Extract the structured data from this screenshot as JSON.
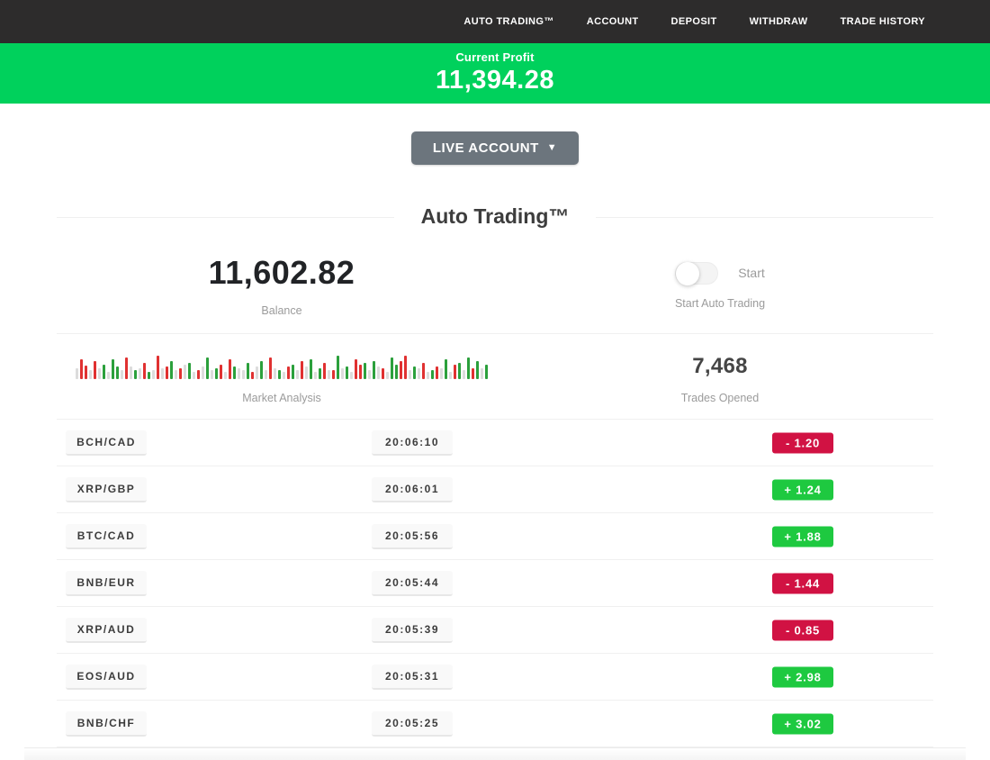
{
  "navbar": {
    "items": [
      "AUTO TRADING™",
      "ACCOUNT",
      "DEPOSIT",
      "WITHDRAW",
      "TRADE HISTORY"
    ]
  },
  "profit_banner": {
    "label": "Current Profit",
    "value": "11,394.28"
  },
  "account_selector": {
    "label": "LIVE ACCOUNT",
    "caret": "▼"
  },
  "section": {
    "title": "Auto Trading™"
  },
  "stats": {
    "balance": {
      "value": "11,602.82",
      "label": "Balance"
    },
    "auto_trading": {
      "state": "off",
      "toggle_label": "Start",
      "label": "Start Auto Trading"
    },
    "trades_opened": {
      "value": "7,468",
      "label": "Trades Opened"
    },
    "market_analysis": {
      "label": "Market Analysis"
    }
  },
  "chart_data": {
    "type": "bar",
    "title": "Market Analysis",
    "note": "decorative candlestick-style ticker, bottom-aligned bars",
    "colors": {
      "r": "#e03131",
      "g": "#2ba03c",
      "x": "#dcdcdc"
    },
    "bars": [
      [
        "x",
        12
      ],
      [
        "r",
        22
      ],
      [
        "r",
        15
      ],
      [
        "x",
        10
      ],
      [
        "r",
        20
      ],
      [
        "x",
        12
      ],
      [
        "g",
        16
      ],
      [
        "x",
        8
      ],
      [
        "g",
        22
      ],
      [
        "g",
        14
      ],
      [
        "x",
        10
      ],
      [
        "r",
        24
      ],
      [
        "x",
        14
      ],
      [
        "g",
        10
      ],
      [
        "x",
        12
      ],
      [
        "r",
        18
      ],
      [
        "g",
        8
      ],
      [
        "x",
        10
      ],
      [
        "r",
        26
      ],
      [
        "x",
        12
      ],
      [
        "r",
        14
      ],
      [
        "g",
        20
      ],
      [
        "x",
        10
      ],
      [
        "r",
        12
      ],
      [
        "x",
        16
      ],
      [
        "g",
        18
      ],
      [
        "x",
        8
      ],
      [
        "r",
        10
      ],
      [
        "x",
        14
      ],
      [
        "g",
        24
      ],
      [
        "x",
        10
      ],
      [
        "g",
        12
      ],
      [
        "r",
        16
      ],
      [
        "x",
        8
      ],
      [
        "r",
        22
      ],
      [
        "g",
        14
      ],
      [
        "x",
        12
      ],
      [
        "x",
        10
      ],
      [
        "g",
        18
      ],
      [
        "r",
        8
      ],
      [
        "x",
        14
      ],
      [
        "g",
        20
      ],
      [
        "x",
        10
      ],
      [
        "r",
        24
      ],
      [
        "x",
        12
      ],
      [
        "g",
        10
      ],
      [
        "x",
        8
      ],
      [
        "r",
        14
      ],
      [
        "g",
        16
      ],
      [
        "x",
        10
      ],
      [
        "r",
        20
      ],
      [
        "x",
        14
      ],
      [
        "g",
        22
      ],
      [
        "x",
        8
      ],
      [
        "g",
        12
      ],
      [
        "r",
        18
      ],
      [
        "x",
        10
      ],
      [
        "r",
        10
      ],
      [
        "g",
        26
      ],
      [
        "x",
        12
      ],
      [
        "g",
        14
      ],
      [
        "x",
        8
      ],
      [
        "r",
        22
      ],
      [
        "r",
        16
      ],
      [
        "g",
        18
      ],
      [
        "x",
        10
      ],
      [
        "g",
        20
      ],
      [
        "x",
        14
      ],
      [
        "r",
        12
      ],
      [
        "x",
        8
      ],
      [
        "g",
        24
      ],
      [
        "g",
        16
      ],
      [
        "r",
        20
      ],
      [
        "r",
        26
      ],
      [
        "x",
        10
      ],
      [
        "g",
        14
      ],
      [
        "x",
        12
      ],
      [
        "r",
        18
      ],
      [
        "x",
        8
      ],
      [
        "g",
        10
      ],
      [
        "r",
        14
      ],
      [
        "x",
        12
      ],
      [
        "g",
        22
      ],
      [
        "x",
        8
      ],
      [
        "r",
        16
      ],
      [
        "g",
        18
      ],
      [
        "x",
        10
      ],
      [
        "g",
        24
      ],
      [
        "r",
        12
      ],
      [
        "g",
        20
      ],
      [
        "x",
        12
      ],
      [
        "g",
        16
      ]
    ]
  },
  "trades": [
    {
      "pair": "BCH/CAD",
      "time": "20:06:10",
      "change": "-  1.20",
      "direction": "down"
    },
    {
      "pair": "XRP/GBP",
      "time": "20:06:01",
      "change": "+  1.24",
      "direction": "up"
    },
    {
      "pair": "BTC/CAD",
      "time": "20:05:56",
      "change": "+  1.88",
      "direction": "up"
    },
    {
      "pair": "BNB/EUR",
      "time": "20:05:44",
      "change": "-  1.44",
      "direction": "down"
    },
    {
      "pair": "XRP/AUD",
      "time": "20:05:39",
      "change": "-  0.85",
      "direction": "down"
    },
    {
      "pair": "EOS/AUD",
      "time": "20:05:31",
      "change": "+  2.98",
      "direction": "up"
    },
    {
      "pair": "BNB/CHF",
      "time": "20:05:25",
      "change": "+  3.02",
      "direction": "up"
    }
  ],
  "colors": {
    "nav_bg": "#2d2c2c",
    "banner_green": "#00d15c",
    "positive": "#1ec940",
    "negative": "#d11243",
    "button_gray": "#6c757d"
  }
}
